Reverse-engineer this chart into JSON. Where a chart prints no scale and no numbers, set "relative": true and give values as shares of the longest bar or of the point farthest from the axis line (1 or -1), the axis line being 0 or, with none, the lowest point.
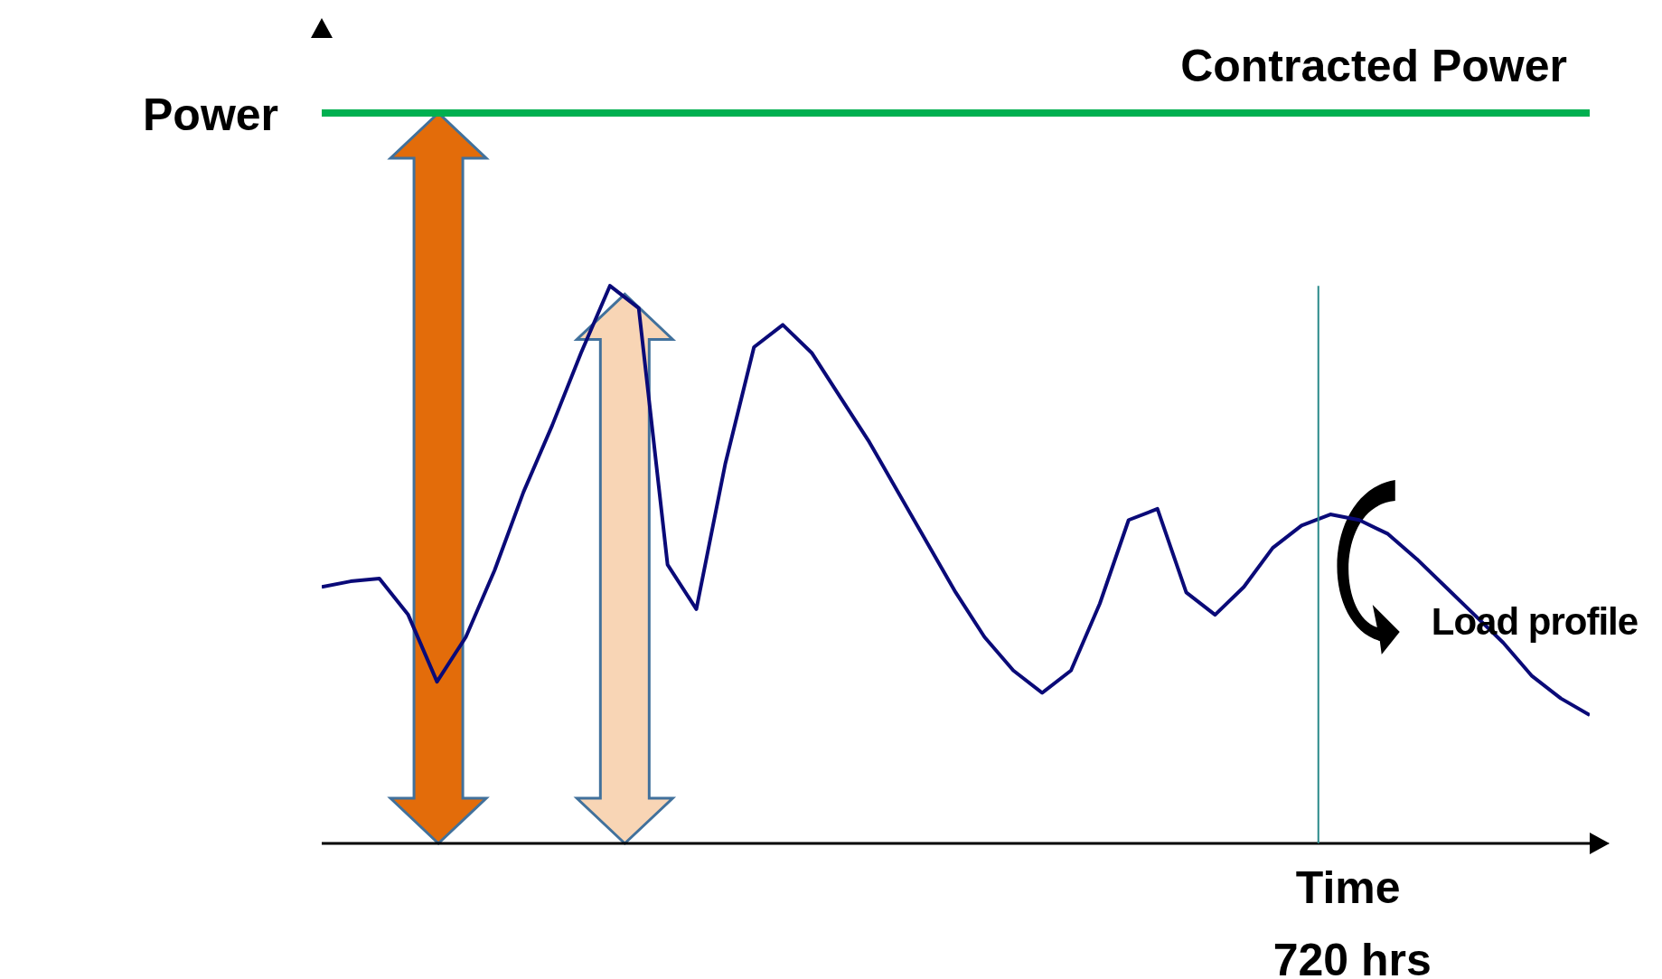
{
  "chart_data": {
    "type": "line",
    "relative": true,
    "xlabel": "Time",
    "ylabel": "Power",
    "marker": "none",
    "line_style": "solid",
    "categories": [
      null,
      null,
      null,
      null,
      null,
      null,
      null,
      null,
      null,
      null,
      null,
      null,
      null,
      null,
      null,
      null,
      null,
      null,
      null,
      null,
      null,
      null,
      null,
      null,
      null,
      null,
      null,
      null,
      null,
      null,
      null,
      null,
      null,
      null,
      null,
      null,
      null,
      null,
      null,
      null,
      null,
      null,
      null,
      null,
      null
    ],
    "series": [
      {
        "color": "#0a0a78",
        "values": [
          0.46,
          0.47,
          0.475,
          0.41,
          0.29,
          0.37,
          0.49,
          0.63,
          0.75,
          0.88,
          1.0,
          0.96,
          0.5,
          0.42,
          0.68,
          0.89,
          0.93,
          0.88,
          0.8,
          0.72,
          0.63,
          0.54,
          0.45,
          0.37,
          0.31,
          0.27,
          0.31,
          0.43,
          0.58,
          0.6,
          0.45,
          0.41,
          0.46,
          0.53,
          0.57,
          0.59,
          0.58,
          0.555,
          0.51,
          0.46,
          0.41,
          0.36,
          0.3,
          0.26,
          0.23
        ]
      }
    ],
    "ref_lines": [
      {
        "axis": "y",
        "value": 1.31,
        "label": "Contracted Power",
        "color": "#00b050"
      }
    ],
    "annotations": [
      "720 hrs",
      "Load profile"
    ]
  }
}
